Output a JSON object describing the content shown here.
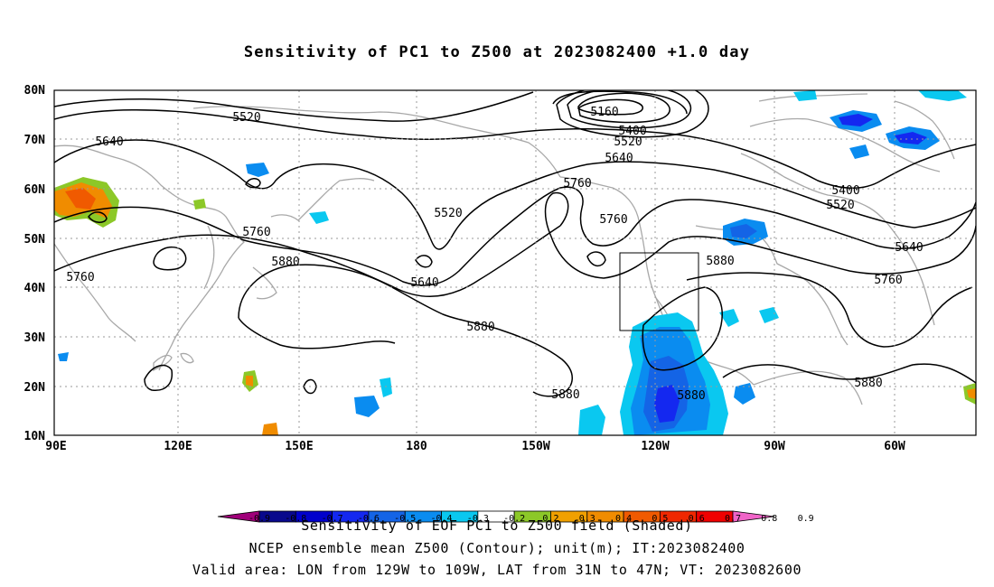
{
  "title": "Sensitivity of PC1 to Z500 at 2023082400 +1.0 day",
  "axes": {
    "x_ticks": [
      "90E",
      "120E",
      "150E",
      "180",
      "150W",
      "120W",
      "90W",
      "60W"
    ],
    "y_ticks": [
      "80N",
      "70N",
      "60N",
      "50N",
      "40N",
      "30N",
      "20N",
      "10N"
    ]
  },
  "colorbar": {
    "levels": [
      "-0.9",
      "-0.8",
      "-0.7",
      "-0.6",
      "-0.5",
      "-0.4",
      "-0.3",
      "-0.2",
      "0.2",
      "0.3",
      "0.4",
      "0.5",
      "0.6",
      "0.7",
      "0.8",
      "0.9"
    ],
    "colors": [
      "#a0007a",
      "#08088c",
      "#0000cc",
      "#1428f0",
      "#1464e6",
      "#0a8cf0",
      "#0ac8f0",
      "#ffffff",
      "#8cc828",
      "#f0a000",
      "#f08c00",
      "#f05a00",
      "#f02800",
      "#f00000",
      "#f064c8"
    ]
  },
  "contour_labels": [
    {
      "text": "5520"
    },
    {
      "text": "5640"
    },
    {
      "text": "5160"
    },
    {
      "text": "5400"
    },
    {
      "text": "5520"
    },
    {
      "text": "5640"
    },
    {
      "text": "5760"
    },
    {
      "text": "5760"
    },
    {
      "text": "5520"
    },
    {
      "text": "5760"
    },
    {
      "text": "5880"
    },
    {
      "text": "5640"
    },
    {
      "text": "5760"
    },
    {
      "text": "5880"
    },
    {
      "text": "5880"
    },
    {
      "text": "5880"
    },
    {
      "text": "5880"
    },
    {
      "text": "5400"
    },
    {
      "text": "5520"
    },
    {
      "text": "5640"
    },
    {
      "text": "5760"
    },
    {
      "text": "5880"
    }
  ],
  "footer": {
    "line1": "Sensitivity of EOF PC1 to Z500 field (Shaded)",
    "line2": "NCEP ensemble mean Z500 (Contour); unit(m); IT:2023082400",
    "line3": "Valid area: LON from 129W to 109W, LAT from 31N to 47N; VT: 2023082600"
  }
}
